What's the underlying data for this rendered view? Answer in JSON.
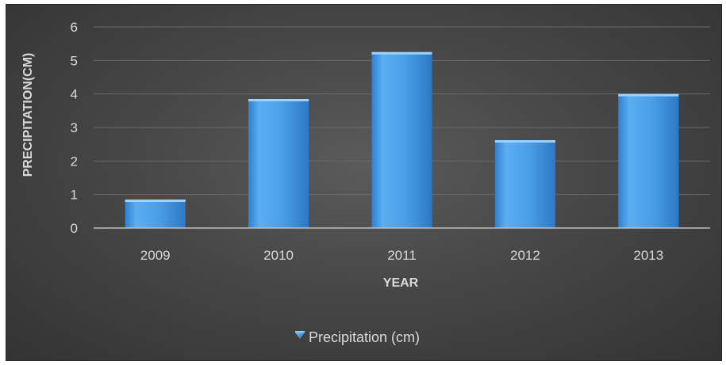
{
  "chart_data": {
    "type": "bar",
    "title": "",
    "categories": [
      "2009",
      "2010",
      "2011",
      "2012",
      "2013"
    ],
    "series": [
      {
        "name": "Precipitation (cm)",
        "values": [
          0.85,
          3.85,
          5.25,
          2.62,
          4.0
        ],
        "color": "#4a9fe8"
      }
    ],
    "xlabel": "YEAR",
    "ylabel": "PRECIPITATION(CM)",
    "ylim": [
      0,
      6
    ],
    "yticks": [
      "0",
      "1",
      "2",
      "3",
      "4",
      "5",
      "6"
    ],
    "grid": true,
    "legend_position": "bottom",
    "background_color": "#454545"
  }
}
